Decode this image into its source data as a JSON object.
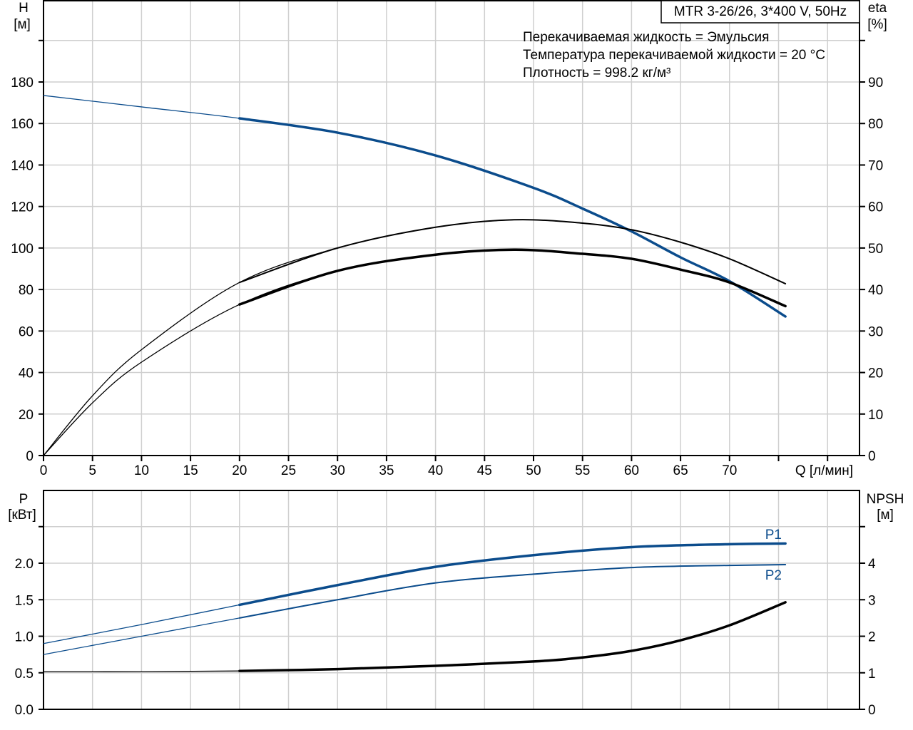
{
  "chart_data": [
    {
      "type": "line",
      "title": "MTR 3-26/26, 3*400 V, 50Hz",
      "annotations": [
        "Перекачиваемая жидкость = Эмульсия",
        "Температура перекачиваемой жидкости = 20 °C",
        "Плотность = 998.2 кг/м³"
      ],
      "xlabel": "Q [л/мин]",
      "ylabel_left": [
        "H",
        "[м]"
      ],
      "ylabel_right": [
        "eta",
        "[%]"
      ],
      "xlim": [
        0,
        83
      ],
      "ylim_left": [
        0,
        220
      ],
      "ylim_right": [
        0,
        110
      ],
      "x_ticks": [
        0,
        5,
        10,
        15,
        20,
        25,
        30,
        35,
        40,
        45,
        50,
        55,
        60,
        65,
        70,
        75,
        80
      ],
      "x_tick_labels": [
        "0",
        "5",
        "10",
        "15",
        "20",
        "25",
        "30",
        "35",
        "40",
        "45",
        "50",
        "55",
        "60",
        "65",
        "70",
        "",
        ""
      ],
      "y_left_ticks": [
        0,
        20,
        40,
        60,
        80,
        100,
        120,
        140,
        160,
        180,
        200
      ],
      "y_left_labels": [
        "0",
        "20",
        "40",
        "60",
        "80",
        "100",
        "120",
        "140",
        "160",
        "180",
        ""
      ],
      "y_right_ticks": [
        0,
        10,
        20,
        30,
        40,
        50,
        60,
        70,
        80,
        90,
        100
      ],
      "y_right_labels": [
        "0",
        "10",
        "20",
        "30",
        "40",
        "50",
        "60",
        "70",
        "80",
        "90",
        ""
      ],
      "grid": true,
      "series": [
        {
          "name": "H",
          "axis": "left",
          "color": "#0b4c8c",
          "x": [
            0,
            10,
            20,
            30,
            40,
            50,
            55,
            60,
            65,
            70,
            75.7
          ],
          "y": [
            173.5,
            168,
            162.5,
            155.6,
            144.6,
            129,
            119,
            108,
            95.5,
            84,
            67
          ]
        },
        {
          "name": "eta",
          "axis": "right",
          "color": "#000000",
          "x": [
            0,
            5,
            10,
            20,
            30,
            40,
            48,
            55,
            60,
            65,
            70,
            75.7
          ],
          "y": [
            0,
            12.7,
            22.5,
            36.4,
            44.5,
            48.4,
            49.6,
            48.6,
            47.4,
            44.8,
            41.7,
            36
          ]
        },
        {
          "name": "eta-upper",
          "axis": "right",
          "color": "#000000",
          "x": [
            0,
            5,
            10,
            20,
            30,
            40,
            48,
            55,
            60,
            65,
            70,
            75.7
          ],
          "y": [
            0,
            14.4,
            25.5,
            41.7,
            50,
            55,
            56.8,
            56,
            54.4,
            51.4,
            47.4,
            41.4
          ]
        }
      ]
    },
    {
      "type": "line",
      "xlim": [
        0,
        83
      ],
      "ylabel_left": [
        "P",
        "[кВт]"
      ],
      "ylabel_right": [
        "NPSH",
        "[м]"
      ],
      "ylim_left": [
        0,
        3
      ],
      "ylim_right": [
        0,
        6
      ],
      "y_left_ticks": [
        0,
        0.5,
        1.0,
        1.5,
        2.0,
        2.5
      ],
      "y_left_labels": [
        "0.0",
        "0.5",
        "1.0",
        "1.5",
        "2.0",
        ""
      ],
      "y_right_ticks": [
        0,
        1,
        2,
        3,
        4,
        5
      ],
      "y_right_labels": [
        "0",
        "1",
        "2",
        "3",
        "4",
        ""
      ],
      "grid": true,
      "series": [
        {
          "name": "P1",
          "axis": "left",
          "color": "#0b4c8c",
          "x": [
            0,
            10,
            20,
            30,
            40,
            50,
            60,
            70,
            75.7
          ],
          "y": [
            0.9,
            1.16,
            1.43,
            1.7,
            1.95,
            2.11,
            2.22,
            2.26,
            2.27
          ]
        },
        {
          "name": "P2",
          "axis": "left",
          "color": "#0b4c8c",
          "x": [
            0,
            10,
            20,
            30,
            40,
            50,
            60,
            70,
            75.7
          ],
          "y": [
            0.75,
            1.0,
            1.25,
            1.5,
            1.73,
            1.85,
            1.94,
            1.97,
            1.98
          ]
        },
        {
          "name": "NPSH",
          "axis": "right",
          "color": "#000000",
          "x": [
            0,
            10,
            20,
            30,
            40,
            50,
            55,
            60,
            65,
            70,
            75.7
          ],
          "y": [
            1.03,
            1.03,
            1.05,
            1.1,
            1.19,
            1.31,
            1.42,
            1.6,
            1.89,
            2.3,
            2.93
          ]
        }
      ]
    }
  ]
}
